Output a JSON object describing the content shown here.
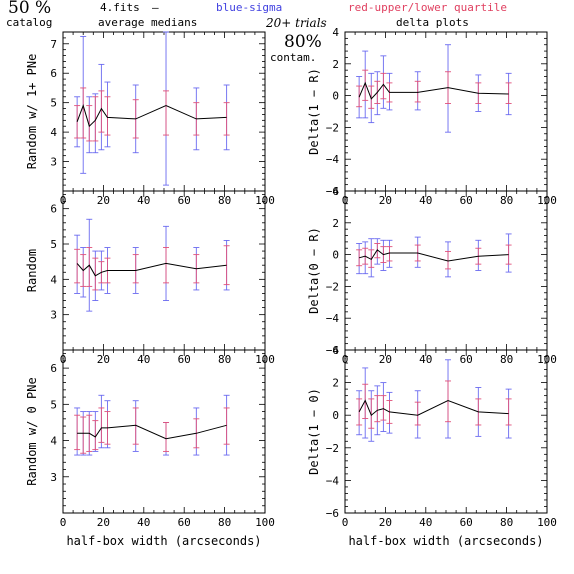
{
  "header": {
    "pct": "50 %",
    "catalog": "catalog",
    "fits": "4.fits",
    "dash": "—",
    "medians": "average medians",
    "blue_sigma": "blue-sigma",
    "red_quartile": "red-upper/lower quartile",
    "trials": "20+ trials",
    "delta_title": "delta plots",
    "contam_pct": "80%",
    "contam": "contam."
  },
  "colors": {
    "sigma": "#6a6af0",
    "quartile": "#e0507a",
    "line": "#000000",
    "axis": "#000000",
    "blue_text": "#4040e0",
    "red_text": "#e04060"
  },
  "chart_data": [
    {
      "type": "line",
      "panel": "top-left",
      "ylabel": "Random w/ 1+ PNe",
      "xlim": [
        0,
        100
      ],
      "ylim": [
        2,
        7.4
      ],
      "xticks": [
        "0",
        "20",
        "40",
        "60",
        "80",
        "100"
      ],
      "yticks": [
        "3",
        "4",
        "5",
        "6",
        "7"
      ],
      "x": [
        7,
        10,
        13,
        16,
        19,
        22,
        36,
        51,
        66,
        81
      ],
      "y": [
        4.35,
        4.9,
        4.2,
        4.4,
        4.8,
        4.5,
        4.45,
        4.9,
        4.45,
        4.5
      ],
      "sigma_lo": [
        3.5,
        2.6,
        3.3,
        3.3,
        3.4,
        3.5,
        3.3,
        2.2,
        3.4,
        3.4
      ],
      "sigma_hi": [
        5.2,
        7.25,
        5.2,
        5.3,
        6.3,
        5.7,
        5.6,
        7.5,
        5.5,
        5.6
      ],
      "q_lo": [
        3.8,
        3.8,
        3.7,
        3.7,
        4.0,
        3.9,
        3.8,
        3.9,
        3.9,
        3.9
      ],
      "q_hi": [
        4.9,
        5.5,
        4.9,
        5.2,
        5.4,
        5.2,
        5.1,
        5.4,
        5.0,
        5.0
      ]
    },
    {
      "type": "line",
      "panel": "top-right",
      "ylabel": "Delta(1 − R)",
      "xlim": [
        0,
        100
      ],
      "ylim": [
        -6,
        4
      ],
      "xticks": [
        "0",
        "20",
        "40",
        "60",
        "80",
        "100"
      ],
      "yticks": [
        "−6",
        "−4",
        "−2",
        "0",
        "2",
        "4"
      ],
      "x": [
        7,
        10,
        13,
        16,
        19,
        22,
        36,
        51,
        66,
        81
      ],
      "y": [
        -0.1,
        0.8,
        -0.2,
        0.2,
        0.7,
        0.2,
        0.2,
        0.5,
        0.15,
        0.1
      ],
      "sigma_lo": [
        -1.4,
        -1.4,
        -1.7,
        -1.2,
        -0.8,
        -0.9,
        -0.9,
        -2.3,
        -1.0,
        -1.2
      ],
      "sigma_hi": [
        1.2,
        2.8,
        1.4,
        1.5,
        2.5,
        1.4,
        1.5,
        3.2,
        1.3,
        1.4
      ],
      "q_lo": [
        -0.7,
        -0.3,
        -0.8,
        -0.5,
        -0.2,
        -0.4,
        -0.4,
        -0.5,
        -0.5,
        -0.5
      ],
      "q_hi": [
        0.6,
        1.6,
        0.6,
        0.9,
        1.4,
        0.8,
        0.9,
        1.5,
        0.8,
        0.8
      ]
    },
    {
      "type": "line",
      "panel": "middle-left",
      "ylabel": "Random",
      "xlim": [
        0,
        100
      ],
      "ylim": [
        2,
        6.5
      ],
      "xticks": [
        "0",
        "20",
        "40",
        "60",
        "80",
        "100"
      ],
      "yticks": [
        "3",
        "4",
        "5",
        "6"
      ],
      "x": [
        7,
        10,
        13,
        16,
        19,
        22,
        36,
        51,
        66,
        81
      ],
      "y": [
        4.45,
        4.25,
        4.4,
        4.1,
        4.2,
        4.25,
        4.25,
        4.45,
        4.3,
        4.4
      ],
      "sigma_lo": [
        3.6,
        3.5,
        3.1,
        3.4,
        3.7,
        3.6,
        3.6,
        3.4,
        3.7,
        3.7
      ],
      "sigma_hi": [
        5.25,
        4.9,
        5.7,
        4.8,
        4.8,
        4.9,
        4.9,
        5.5,
        4.9,
        5.1
      ],
      "q_lo": [
        3.9,
        3.8,
        3.8,
        3.7,
        3.9,
        3.9,
        3.9,
        3.9,
        3.9,
        3.85
      ],
      "q_hi": [
        4.85,
        4.7,
        4.9,
        4.6,
        4.5,
        4.6,
        4.7,
        4.9,
        4.7,
        4.95
      ]
    },
    {
      "type": "line",
      "panel": "middle-right",
      "ylabel": "Delta(0 − R)",
      "xlim": [
        0,
        100
      ],
      "ylim": [
        -6,
        4
      ],
      "xticks": [
        "0",
        "20",
        "40",
        "60",
        "80",
        "100"
      ],
      "yticks": [
        "−6",
        "−4",
        "−2",
        "0",
        "2",
        "4"
      ],
      "x": [
        7,
        10,
        13,
        16,
        19,
        22,
        36,
        51,
        66,
        81
      ],
      "y": [
        -0.2,
        -0.1,
        -0.3,
        0.3,
        0.0,
        0.1,
        0.1,
        -0.4,
        -0.1,
        0.0
      ],
      "sigma_lo": [
        -1.2,
        -1.2,
        -1.4,
        -0.6,
        -1.0,
        -0.8,
        -0.8,
        -1.4,
        -1.0,
        -1.1
      ],
      "sigma_hi": [
        0.7,
        0.8,
        1.0,
        1.0,
        0.9,
        0.9,
        1.1,
        0.8,
        0.9,
        1.3
      ],
      "q_lo": [
        -0.7,
        -0.6,
        -0.8,
        -0.2,
        -0.5,
        -0.4,
        -0.4,
        -0.9,
        -0.6,
        -0.6
      ],
      "q_hi": [
        0.3,
        0.4,
        0.3,
        0.7,
        0.5,
        0.5,
        0.6,
        0.2,
        0.4,
        0.6
      ]
    },
    {
      "type": "line",
      "panel": "bottom-left",
      "ylabel": "Random w/ 0 PNe",
      "xlim": [
        0,
        100
      ],
      "ylim": [
        2,
        6.5
      ],
      "xticks": [
        "0",
        "20",
        "40",
        "60",
        "80",
        "100"
      ],
      "yticks": [
        "3",
        "4",
        "5",
        "6"
      ],
      "x": [
        7,
        10,
        13,
        16,
        19,
        22,
        36,
        51,
        66,
        81
      ],
      "y": [
        4.2,
        4.2,
        4.2,
        4.1,
        4.35,
        4.35,
        4.42,
        4.05,
        4.2,
        4.42
      ],
      "sigma_lo": [
        3.6,
        3.6,
        3.6,
        3.7,
        3.8,
        3.8,
        3.7,
        3.6,
        3.6,
        3.6
      ],
      "sigma_hi": [
        4.9,
        4.8,
        4.8,
        4.8,
        5.25,
        5.1,
        5.1,
        4.5,
        4.9,
        5.25
      ],
      "q_lo": [
        3.75,
        3.65,
        3.7,
        3.75,
        3.95,
        3.9,
        3.9,
        3.7,
        3.8,
        3.9
      ],
      "q_hi": [
        4.7,
        4.65,
        4.7,
        4.55,
        4.9,
        4.8,
        4.9,
        4.5,
        4.6,
        4.9
      ]
    },
    {
      "type": "line",
      "panel": "bottom-right",
      "ylabel": "Delta(1 − 0)",
      "xlim": [
        0,
        100
      ],
      "ylim": [
        -6,
        4
      ],
      "xticks": [
        "0",
        "20",
        "40",
        "60",
        "80",
        "100"
      ],
      "yticks": [
        "−6",
        "−4",
        "−2",
        "0",
        "2",
        "4"
      ],
      "x": [
        7,
        10,
        13,
        16,
        19,
        22,
        36,
        51,
        66,
        81
      ],
      "y": [
        0.2,
        0.9,
        0.0,
        0.3,
        0.4,
        0.2,
        0.0,
        0.9,
        0.2,
        0.1
      ],
      "sigma_lo": [
        -1.2,
        -1.4,
        -1.6,
        -1.2,
        -1.0,
        -1.1,
        -1.4,
        -1.4,
        -1.3,
        -1.4
      ],
      "sigma_hi": [
        1.5,
        2.9,
        1.5,
        1.8,
        2.0,
        1.4,
        1.5,
        3.4,
        1.7,
        1.6
      ],
      "q_lo": [
        -0.6,
        -0.2,
        -0.8,
        -0.4,
        -0.3,
        -0.5,
        -0.6,
        -0.4,
        -0.6,
        -0.6
      ],
      "q_hi": [
        1.0,
        1.9,
        1.0,
        1.2,
        1.2,
        0.9,
        0.8,
        2.1,
        1.0,
        1.0
      ]
    }
  ],
  "xlabel_left": "half-box width (arcseconds)",
  "xlabel_right": "half-box width (arcseconds)"
}
